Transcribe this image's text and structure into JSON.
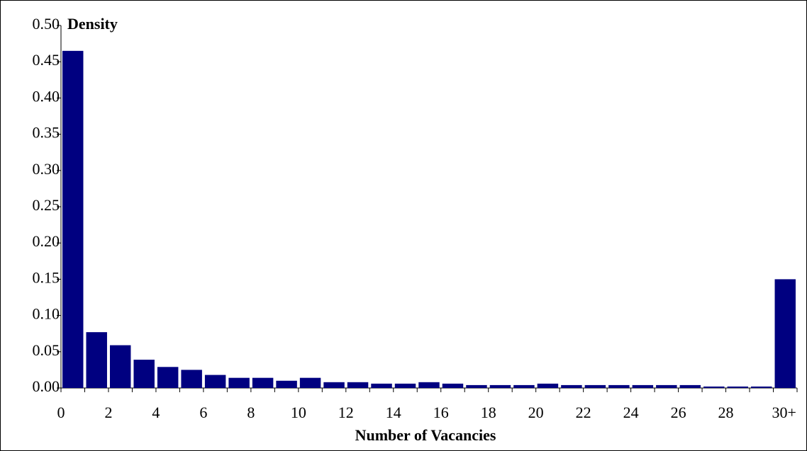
{
  "chart_data": {
    "type": "bar",
    "title": "Density",
    "x_label": "Number of Vacancies",
    "categories": [
      "0",
      null,
      "2",
      null,
      "4",
      null,
      "6",
      null,
      "8",
      null,
      "10",
      null,
      "12",
      null,
      "14",
      null,
      "16",
      null,
      "18",
      null,
      "20",
      null,
      "22",
      null,
      "24",
      null,
      "26",
      null,
      "28",
      null,
      "30+"
    ],
    "values": [
      0.465,
      0.077,
      0.059,
      0.039,
      0.029,
      0.025,
      0.018,
      0.014,
      0.014,
      0.01,
      0.014,
      0.008,
      0.008,
      0.006,
      0.006,
      0.008,
      0.006,
      0.004,
      0.004,
      0.004,
      0.006,
      0.004,
      0.004,
      0.004,
      0.004,
      0.004,
      0.004,
      0.002,
      0.002,
      0.002,
      0.15
    ],
    "color": "#000080",
    "ylim": [
      0,
      0.5
    ],
    "yticks": [
      {
        "value": 0,
        "label": "0.00"
      },
      {
        "value": 0.05,
        "label": "0.05"
      },
      {
        "value": 0.1,
        "label": "0.10"
      },
      {
        "value": 0.15,
        "label": "0.15"
      },
      {
        "value": 0.2,
        "label": "0.20"
      },
      {
        "value": 0.25,
        "label": "0.25"
      },
      {
        "value": 0.3,
        "label": "0.30"
      },
      {
        "value": 0.35,
        "label": "0.35"
      },
      {
        "value": 0.4,
        "label": "0.40"
      },
      {
        "value": 0.45,
        "label": "0.45"
      },
      {
        "value": 0.5,
        "label": "0.50"
      }
    ]
  }
}
